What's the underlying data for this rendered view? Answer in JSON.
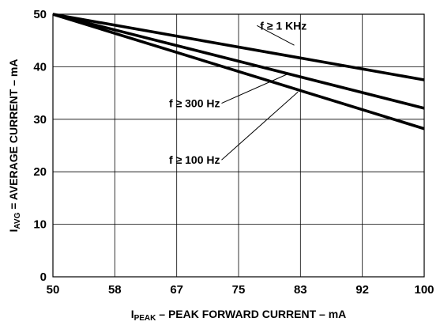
{
  "chart_data": {
    "type": "line",
    "x_ticks": [
      "50",
      "58",
      "67",
      "75",
      "83",
      "92",
      "100"
    ],
    "x_tick_values": [
      50,
      58.33,
      66.67,
      75,
      83.33,
      91.67,
      100
    ],
    "y_ticks": [
      "0",
      "10",
      "20",
      "30",
      "40",
      "50"
    ],
    "y_tick_values": [
      0,
      10,
      20,
      30,
      40,
      50
    ],
    "xlim": [
      50,
      100
    ],
    "ylim": [
      0,
      50
    ],
    "grid": true,
    "xlabel": {
      "main": "I",
      "sub": "PEAK",
      "rest": " – PEAK FORWARD CURRENT – mA"
    },
    "ylabel": {
      "main": "I",
      "sub": "AVG",
      "rest": " = AVERAGE CURRENT – mA"
    },
    "series": [
      {
        "name": "f ≥ 1 KHz",
        "x": [
          50,
          100
        ],
        "y": [
          50,
          37.5
        ],
        "label_at": [
          77.9,
          47.1
        ],
        "anchor": "start",
        "leader_to": [
          82.5,
          44.1
        ]
      },
      {
        "name": "f ≥ 300 Hz",
        "x": [
          50,
          100
        ],
        "y": [
          50,
          32.1
        ],
        "label_at": [
          72.5,
          32.3
        ],
        "anchor": "end",
        "leader_to": [
          81.9,
          38.8
        ]
      },
      {
        "name": "f ≥ 100 Hz",
        "x": [
          50,
          100
        ],
        "y": [
          50,
          28.2
        ],
        "label_at": [
          72.5,
          21.5
        ],
        "anchor": "end",
        "leader_to": [
          83.0,
          35.2
        ]
      }
    ]
  }
}
